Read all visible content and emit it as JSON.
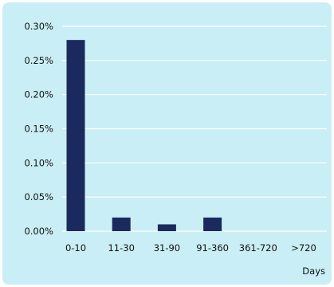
{
  "chart_data": {
    "type": "bar",
    "categories": [
      "0-10",
      "11-30",
      "31-90",
      "91-360",
      "361-720",
      ">720"
    ],
    "values": [
      0.28,
      0.02,
      0.01,
      0.02,
      0,
      0
    ],
    "yticks": [
      "0.00%",
      "0.05%",
      "0.10%",
      "0.15%",
      "0.20%",
      "0.25%",
      "0.30%"
    ],
    "ylim": [
      0,
      0.3
    ],
    "xlabel": "Days",
    "ylabel": "",
    "title": "",
    "grid": true,
    "colors": {
      "bar": "#1b2a5e",
      "background": "#c9eef5",
      "grid": "#ffffff"
    }
  }
}
